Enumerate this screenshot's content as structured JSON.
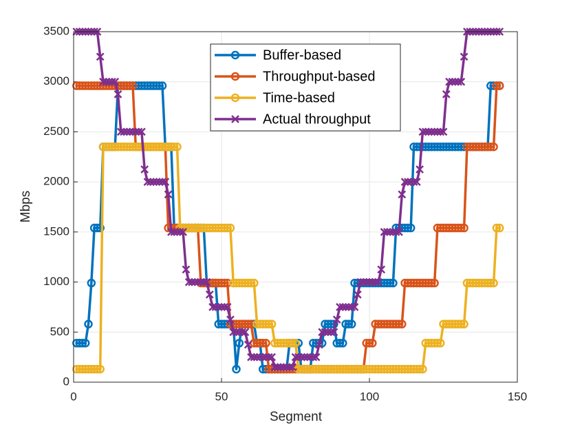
{
  "chart_data": {
    "type": "line",
    "xlabel": "Segment",
    "ylabel": "Mbps",
    "xlim": [
      0,
      150
    ],
    "xticks": [
      0,
      50,
      100,
      150
    ],
    "ylim": [
      0,
      3500
    ],
    "yticks": [
      0,
      500,
      1000,
      1500,
      2000,
      2500,
      3000,
      3500
    ],
    "grid": true,
    "legend": "top",
    "x": [
      1,
      2,
      3,
      4,
      5,
      6,
      7,
      8,
      9,
      10,
      11,
      12,
      13,
      14,
      15,
      16,
      17,
      18,
      19,
      20,
      21,
      22,
      23,
      24,
      25,
      26,
      27,
      28,
      29,
      30,
      31,
      32,
      33,
      34,
      35,
      36,
      37,
      38,
      39,
      40,
      41,
      42,
      43,
      44,
      45,
      46,
      47,
      48,
      49,
      50,
      51,
      52,
      53,
      54,
      55,
      56,
      57,
      58,
      59,
      60,
      61,
      62,
      63,
      64,
      65,
      66,
      67,
      68,
      69,
      70,
      71,
      72,
      73,
      74,
      75,
      76,
      77,
      78,
      79,
      80,
      81,
      82,
      83,
      84,
      85,
      86,
      87,
      88,
      89,
      90,
      91,
      92,
      93,
      94,
      95,
      96,
      97,
      98,
      99,
      100,
      101,
      102,
      103,
      104,
      105,
      106,
      107,
      108,
      109,
      110,
      111,
      112,
      113,
      114,
      115,
      116,
      117,
      118,
      119,
      120,
      121,
      122,
      123,
      124,
      125,
      126,
      127,
      128,
      129,
      130,
      131,
      132,
      133,
      134,
      135,
      136,
      137,
      138,
      139,
      140,
      141,
      142,
      143,
      144
    ],
    "series": [
      {
        "name": "Buffer-based",
        "color": "#0072BD",
        "marker": "o",
        "values": [
          390,
          390,
          390,
          390,
          580,
          990,
          1540,
          1540,
          1540,
          2350,
          2350,
          2350,
          2350,
          2350,
          2960,
          2960,
          2960,
          2960,
          2960,
          2960,
          2960,
          2960,
          2960,
          2960,
          2960,
          2960,
          2960,
          2960,
          2960,
          2960,
          2350,
          2350,
          2350,
          1540,
          1540,
          1540,
          1540,
          1540,
          1540,
          1540,
          1540,
          1540,
          1540,
          1540,
          990,
          990,
          990,
          990,
          580,
          580,
          580,
          580,
          580,
          580,
          130,
          390,
          580,
          580,
          580,
          580,
          580,
          390,
          390,
          130,
          130,
          130,
          130,
          130,
          130,
          130,
          130,
          130,
          390,
          390,
          390,
          390,
          130,
          130,
          130,
          130,
          390,
          390,
          390,
          390,
          580,
          580,
          580,
          580,
          390,
          390,
          390,
          580,
          580,
          580,
          990,
          990,
          990,
          990,
          990,
          990,
          990,
          990,
          990,
          990,
          990,
          990,
          990,
          990,
          1540,
          1540,
          1540,
          1540,
          1540,
          1540,
          2350,
          2350,
          2350,
          2350,
          2350,
          2350,
          2350,
          2350,
          2350,
          2350,
          2350,
          2350,
          2350,
          2350,
          2350,
          2350,
          2350,
          2350,
          2350,
          2350,
          2350,
          2350,
          2350,
          2350,
          2350,
          2350,
          2960,
          2960,
          2960,
          2960
        ]
      },
      {
        "name": "Throughput-based",
        "color": "#D95319",
        "marker": "o",
        "values": [
          2960,
          2960,
          2960,
          2960,
          2960,
          2960,
          2960,
          2960,
          2960,
          2960,
          2960,
          2960,
          2960,
          2960,
          2960,
          2960,
          2960,
          2960,
          2960,
          2960,
          2350,
          2350,
          2350,
          2350,
          2350,
          2350,
          2350,
          2350,
          2350,
          2350,
          2350,
          1540,
          1540,
          1540,
          1540,
          1540,
          1540,
          1540,
          1540,
          1540,
          1540,
          1540,
          990,
          990,
          990,
          990,
          990,
          990,
          990,
          990,
          990,
          990,
          580,
          580,
          580,
          580,
          580,
          580,
          580,
          580,
          390,
          390,
          390,
          390,
          390,
          130,
          130,
          130,
          130,
          130,
          130,
          130,
          130,
          130,
          130,
          130,
          130,
          130,
          130,
          130,
          130,
          130,
          130,
          130,
          130,
          130,
          130,
          130,
          130,
          130,
          130,
          130,
          130,
          130,
          130,
          130,
          130,
          130,
          390,
          390,
          390,
          580,
          580,
          580,
          580,
          580,
          580,
          580,
          580,
          580,
          580,
          990,
          990,
          990,
          990,
          990,
          990,
          990,
          990,
          990,
          990,
          990,
          1540,
          1540,
          1540,
          1540,
          1540,
          1540,
          1540,
          1540,
          1540,
          1540,
          2350,
          2350,
          2350,
          2350,
          2350,
          2350,
          2350,
          2350,
          2350,
          2350,
          2960,
          2960
        ]
      },
      {
        "name": "Time-based",
        "color": "#EDB120",
        "marker": "o",
        "values": [
          130,
          130,
          130,
          130,
          130,
          130,
          130,
          130,
          130,
          2350,
          2350,
          2350,
          2350,
          2350,
          2350,
          2350,
          2350,
          2350,
          2350,
          2350,
          2350,
          2350,
          2350,
          2350,
          2350,
          2350,
          2350,
          2350,
          2350,
          2350,
          2350,
          2350,
          2350,
          2350,
          2350,
          1540,
          1540,
          1540,
          1540,
          1540,
          1540,
          1540,
          1540,
          1540,
          1540,
          1540,
          1540,
          1540,
          1540,
          1540,
          1540,
          1540,
          1540,
          990,
          990,
          990,
          990,
          990,
          990,
          990,
          990,
          580,
          580,
          580,
          580,
          580,
          580,
          390,
          390,
          390,
          390,
          390,
          390,
          390,
          390,
          130,
          130,
          130,
          130,
          130,
          130,
          130,
          130,
          130,
          130,
          130,
          130,
          130,
          130,
          130,
          130,
          130,
          130,
          130,
          130,
          130,
          130,
          130,
          130,
          130,
          130,
          130,
          130,
          130,
          130,
          130,
          130,
          130,
          130,
          130,
          130,
          130,
          130,
          130,
          130,
          130,
          130,
          130,
          390,
          390,
          390,
          390,
          390,
          390,
          580,
          580,
          580,
          580,
          580,
          580,
          580,
          580,
          990,
          990,
          990,
          990,
          990,
          990,
          990,
          990,
          990,
          990,
          1540,
          1540
        ]
      },
      {
        "name": "Actual throughput",
        "color": "#7E2F8E",
        "marker": "x",
        "values": [
          3500,
          3500,
          3500,
          3500,
          3500,
          3500,
          3500,
          3500,
          3250,
          3000,
          3000,
          3000,
          3000,
          3000,
          2875,
          2500,
          2500,
          2500,
          2500,
          2500,
          2500,
          2500,
          2500,
          2125,
          2000,
          2000,
          2000,
          2000,
          2000,
          2000,
          2000,
          1875,
          1500,
          1500,
          1500,
          1500,
          1500,
          1125,
          1000,
          1000,
          1000,
          1000,
          1000,
          1000,
          1000,
          875,
          750,
          750,
          750,
          750,
          750,
          750,
          625,
          500,
          500,
          500,
          500,
          500,
          375,
          250,
          250,
          250,
          250,
          250,
          250,
          250,
          250,
          150,
          150,
          150,
          150,
          150,
          150,
          150,
          250,
          250,
          250,
          250,
          250,
          250,
          250,
          250,
          375,
          500,
          500,
          500,
          500,
          500,
          625,
          750,
          750,
          750,
          750,
          750,
          750,
          875,
          1000,
          1000,
          1000,
          1000,
          1000,
          1000,
          1000,
          1125,
          1500,
          1500,
          1500,
          1500,
          1500,
          1500,
          1875,
          2000,
          2000,
          2000,
          2000,
          2000,
          2125,
          2500,
          2500,
          2500,
          2500,
          2500,
          2500,
          2500,
          2500,
          2875,
          3000,
          3000,
          3000,
          3000,
          3000,
          3250,
          3500,
          3500,
          3500,
          3500,
          3500,
          3500,
          3500,
          3500,
          3500,
          3500,
          3500,
          3500
        ]
      }
    ]
  }
}
